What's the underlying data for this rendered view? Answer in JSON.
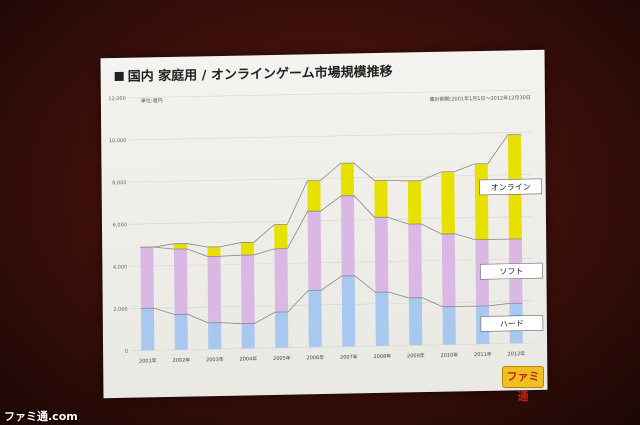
{
  "slide": {
    "title": "国内 家庭用 / オンラインゲーム市場規模推移",
    "unit_label": "単位:億円",
    "period_label": "集計期間:2001年1月1日～2012年12月30日"
  },
  "chart_data": {
    "type": "bar",
    "stacked": true,
    "categories": [
      "2001年",
      "2002年",
      "2003年",
      "2004年",
      "2005年",
      "2006年",
      "2007年",
      "2008年",
      "2009年",
      "2010年",
      "2011年",
      "2012年"
    ],
    "series": [
      {
        "name": "ハード",
        "color": "#a8c8ef",
        "values": [
          2000,
          1680,
          1250,
          1180,
          1700,
          2700,
          3350,
          2550,
          2250,
          1800,
          1800,
          1900
        ]
      },
      {
        "name": "ソフト",
        "color": "#d9b8e4",
        "values": [
          2900,
          3100,
          3150,
          3250,
          3000,
          3750,
          3800,
          3550,
          3500,
          3450,
          3150,
          3050
        ]
      },
      {
        "name": "オンライン",
        "color": "#e8e000",
        "values": [
          0,
          250,
          450,
          600,
          1150,
          1450,
          1550,
          1750,
          2050,
          2950,
          3600,
          4950
        ]
      }
    ],
    "yticks": [
      "0",
      "2,000",
      "4,000",
      "6,000",
      "8,000",
      "10,000",
      "12,000"
    ],
    "ylim": [
      0,
      12000
    ],
    "grid": true,
    "legend": "inline-right"
  },
  "watermarks": {
    "top_left": "ファミ通.com",
    "bottom_right": "ファミ通"
  },
  "colors": {
    "line": "#888888"
  }
}
